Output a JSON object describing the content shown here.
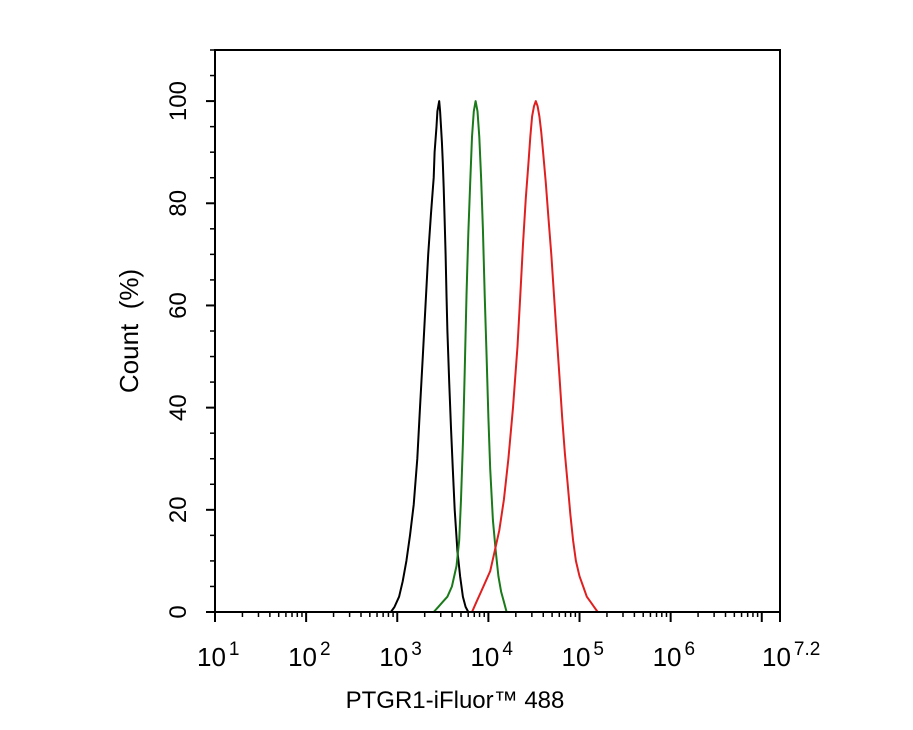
{
  "chart_data": {
    "type": "line",
    "title": "",
    "xlabel": "PTGR1-iFluor™ 488",
    "ylabel": "Count  (%)",
    "xscale": "log",
    "xlim": [
      10,
      15848932
    ],
    "ylim": [
      0,
      110
    ],
    "grid": false,
    "legend": "none",
    "x_tick_labels": [
      {
        "base": "10",
        "exp": "1"
      },
      {
        "base": "10",
        "exp": "2"
      },
      {
        "base": "10",
        "exp": "3"
      },
      {
        "base": "10",
        "exp": "4"
      },
      {
        "base": "10",
        "exp": "5"
      },
      {
        "base": "10",
        "exp": "6"
      },
      {
        "base": "10",
        "exp": "7.2"
      }
    ],
    "y_tick_labels": [
      "0",
      "20",
      "40",
      "60",
      "80",
      "100"
    ],
    "y_tick_values": [
      0,
      20,
      40,
      60,
      80,
      100
    ],
    "series": [
      {
        "color": "#000000",
        "x": [
          851,
          933,
          1047,
          1148,
          1259,
          1380,
          1514,
          1660,
          1778,
          1905,
          2042,
          2188,
          2344,
          2512,
          2570,
          2692,
          2754,
          2818,
          2884,
          2951,
          3020,
          3090,
          3162,
          3236,
          3311,
          3388,
          3467,
          3548,
          3715,
          3890,
          4073,
          4265,
          4571,
          4898,
          5248,
          5623,
          6026
        ],
        "y": [
          0,
          1,
          3,
          6,
          10,
          15,
          21,
          30,
          40,
          50,
          60,
          70,
          78,
          85,
          90,
          95,
          98,
          99,
          100,
          98,
          95,
          92,
          88,
          83,
          77,
          70,
          62,
          55,
          45,
          36,
          28,
          20,
          12,
          7,
          3,
          1,
          0
        ]
      },
      {
        "color": "#1a7a1a",
        "x": [
          2512,
          2818,
          3162,
          3548,
          3981,
          4467,
          4786,
          5012,
          5248,
          5495,
          5754,
          6026,
          6310,
          6607,
          6918,
          7244,
          7586,
          7943,
          8318,
          8710,
          9120,
          9550,
          10000,
          10471,
          11220,
          12023,
          12882,
          13804,
          14791,
          15849
        ],
        "y": [
          0,
          1,
          2,
          3,
          5,
          9,
          14,
          22,
          33,
          47,
          62,
          74,
          84,
          93,
          98,
          100,
          98,
          93,
          85,
          75,
          62,
          50,
          38,
          28,
          18,
          12,
          7,
          4,
          2,
          0
        ]
      },
      {
        "color": "#e02020",
        "x": [
          6607,
          7413,
          8318,
          9333,
          10471,
          11749,
          13183,
          14791,
          16596,
          18621,
          20893,
          22387,
          23988,
          25704,
          27542,
          28840,
          30200,
          31623,
          33113,
          34674,
          36308,
          38019,
          39811,
          42658,
          45709,
          48978,
          52481,
          56234,
          60256,
          64565,
          69183,
          74131,
          79433,
          85114,
          91201,
          100000,
          109648,
          120226,
          131826,
          144544,
          158489
        ],
        "y": [
          0,
          2,
          4,
          6,
          8,
          12,
          16,
          22,
          30,
          40,
          52,
          62,
          72,
          81,
          88,
          93,
          97,
          99,
          100,
          99,
          97,
          94,
          90,
          84,
          77,
          70,
          62,
          54,
          46,
          38,
          31,
          25,
          19,
          14,
          10,
          7,
          5,
          3,
          2,
          1,
          0
        ]
      }
    ]
  }
}
